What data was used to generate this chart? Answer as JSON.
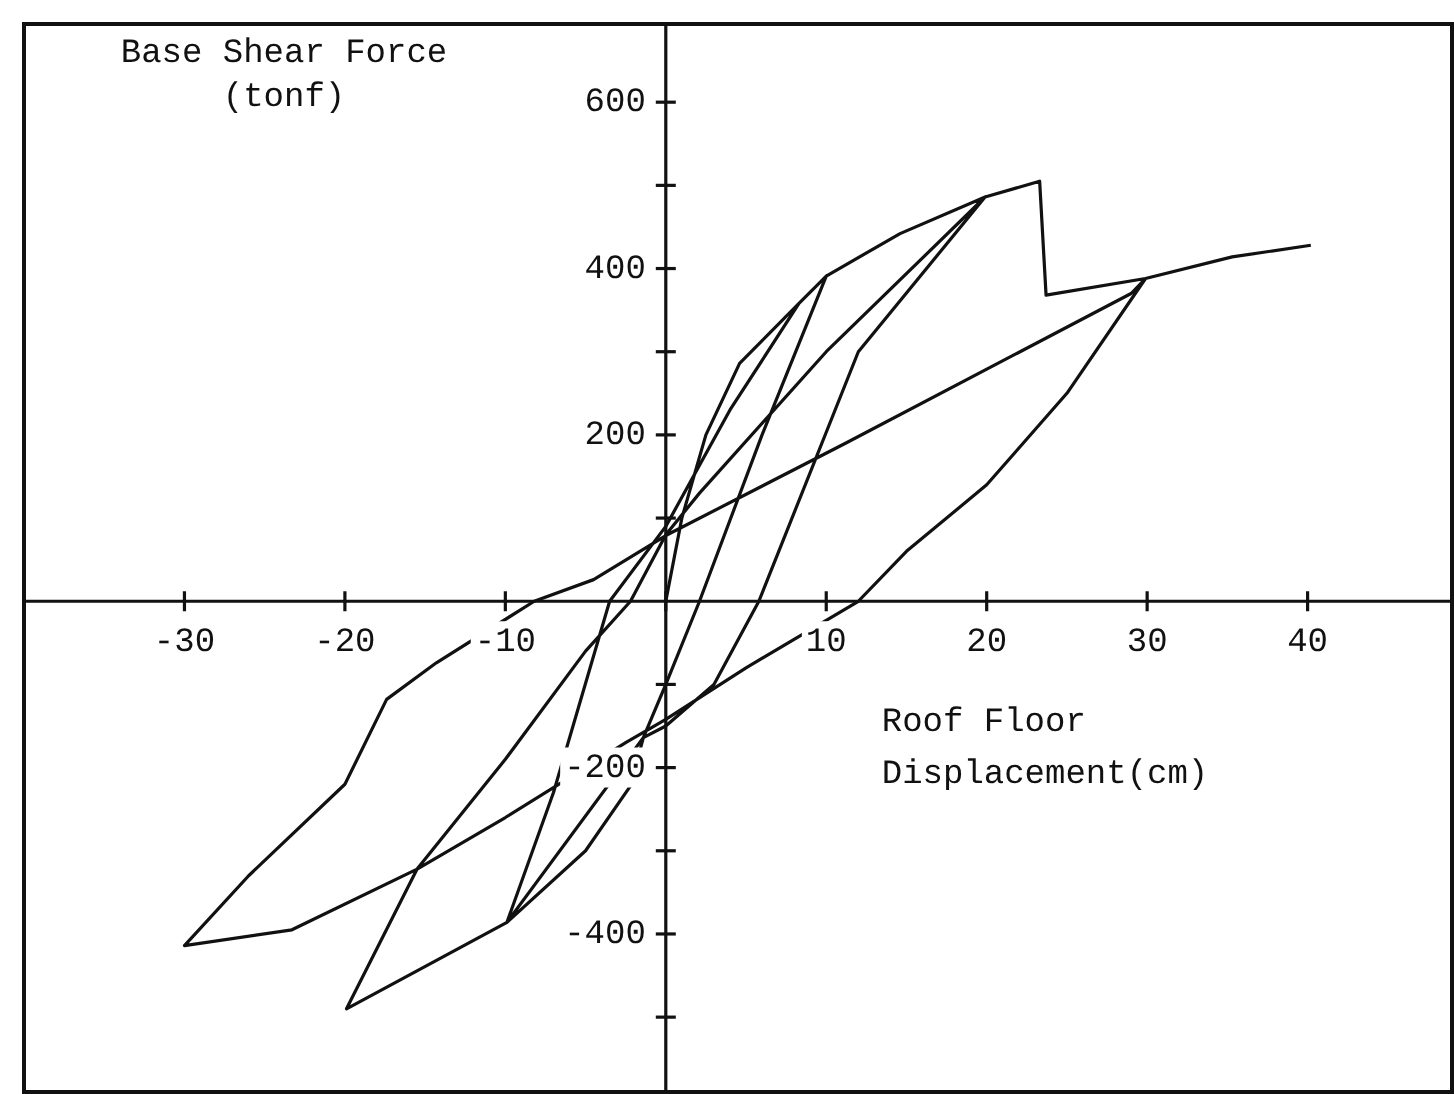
{
  "chart_data": {
    "type": "line",
    "xlabel": "Roof Floor\nDisplacement(cm)",
    "ylabel": "Base Shear Force\n(tonf)",
    "xlim": [
      -40,
      49
    ],
    "ylim": [
      -590,
      694
    ],
    "xticks": [
      -30,
      -20,
      -10,
      {
        "value": 0,
        "label": null
      },
      10,
      20,
      30,
      40
    ],
    "yticks": [
      {
        "value": -500,
        "label": null
      },
      -400,
      {
        "value": -300,
        "label": null
      },
      -200,
      {
        "value": -100,
        "label": null
      },
      {
        "value": 100,
        "label": null
      },
      200,
      {
        "value": 300,
        "label": null
      },
      400,
      {
        "value": 500,
        "label": null
      },
      600
    ],
    "grid": false,
    "legend": false,
    "marker": "none",
    "line_style": "solid",
    "series": [
      {
        "color": "#111111",
        "x": [
          0,
          1,
          2.5,
          4.6,
          8.3,
          10,
          6,
          2.1,
          0,
          -1.4,
          -2.2,
          -5,
          -9.9,
          -7,
          -3.5,
          0,
          4,
          8.3,
          10,
          14.6,
          19.9,
          12,
          5.8,
          3,
          0,
          -1.4,
          -9.9,
          -19.9,
          -15.5,
          -10,
          -5,
          -2.2,
          0,
          2.1,
          10,
          19.9,
          23.3,
          23.7,
          29.9,
          25,
          20,
          15,
          12,
          5,
          0,
          -2.5,
          -10,
          -15.5,
          -23.3,
          -30,
          -26,
          -20,
          -17.4,
          -14.3,
          -8.2,
          -4.5,
          0,
          11.2,
          29,
          29.9,
          35.3,
          40.2
        ],
        "values": [
          0,
          100,
          200,
          286,
          358,
          391,
          200,
          0,
          -100,
          -164,
          -222,
          -300,
          -386,
          -230,
          0,
          90,
          230,
          358,
          391,
          442,
          486,
          300,
          0,
          -100,
          -150,
          -164,
          -386,
          -490,
          -322,
          -190,
          -60,
          0,
          80,
          130,
          300,
          486,
          505,
          368,
          388,
          250,
          140,
          60,
          0,
          -80,
          -142,
          -170,
          -260,
          -322,
          -395,
          -414,
          -330,
          -220,
          -118,
          -74,
          0,
          26,
          79,
          190,
          370,
          388,
          414,
          428
        ]
      }
    ]
  }
}
